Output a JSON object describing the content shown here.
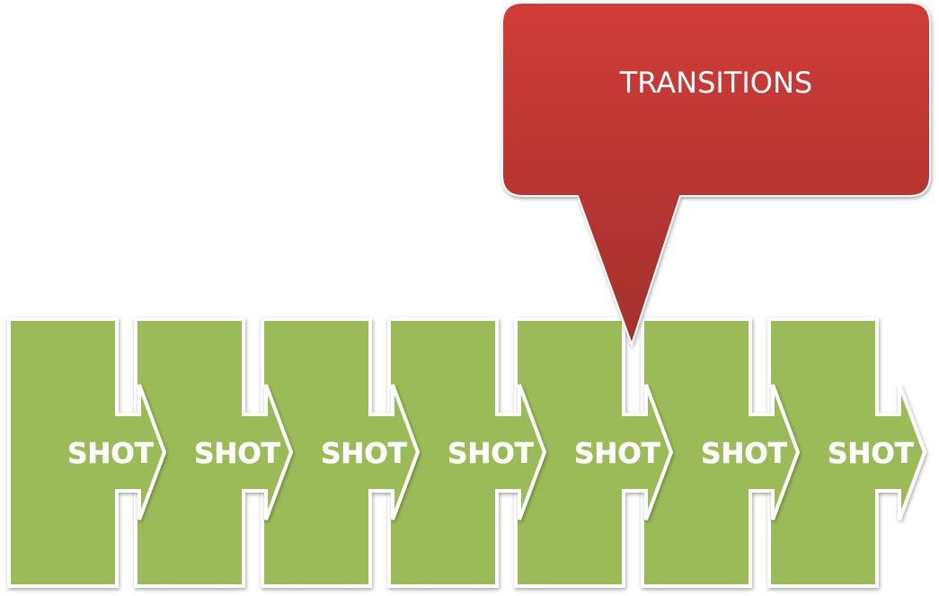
{
  "callout": {
    "label": "TRANSITIONS",
    "color_top": "#d03c38",
    "color_bottom": "#a32f2c"
  },
  "shots": [
    {
      "label": "SHOT"
    },
    {
      "label": "SHOT"
    },
    {
      "label": "SHOT"
    },
    {
      "label": "SHOT"
    },
    {
      "label": "SHOT"
    },
    {
      "label": "SHOT"
    },
    {
      "label": "SHOT"
    }
  ],
  "shot_fill_color": "#9bbb59",
  "shot_outline_color": "#ffffff"
}
